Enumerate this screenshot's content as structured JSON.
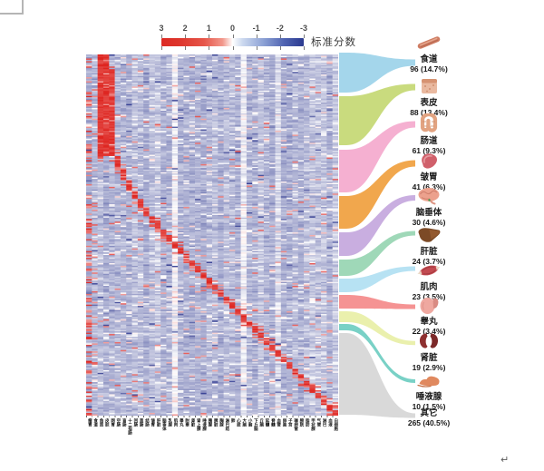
{
  "figure": {
    "colorbar": {
      "label": "标准分数",
      "ticks": [
        "3",
        "2",
        "1",
        "0",
        "-1",
        "-2",
        "-3"
      ]
    },
    "document": {
      "paragraph_mark": "↵"
    }
  },
  "organs": [
    {
      "name": "食道",
      "count_label": "96 (14.7%)",
      "icon": "esophagus-icon",
      "flow_color": "#9fd4ea"
    },
    {
      "name": "表皮",
      "count_label": "88 (13.4%)",
      "icon": "epidermis-icon",
      "flow_color": "#c6d977"
    },
    {
      "name": "肠道",
      "count_label": "61 (9.3%)",
      "icon": "intestine-icon",
      "flow_color": "#f4accf"
    },
    {
      "name": "皱胃",
      "count_label": "41 (6.3%)",
      "icon": "stomach-icon",
      "flow_color": "#f0a243"
    },
    {
      "name": "脑垂体",
      "count_label": "30 (4.6%)",
      "icon": "pituitary-icon",
      "flow_color": "#c6aade"
    },
    {
      "name": "肝脏",
      "count_label": "24 (3.7%)",
      "icon": "liver-icon",
      "flow_color": "#9ad6b4"
    },
    {
      "name": "肌肉",
      "count_label": "23 (3.5%)",
      "icon": "muscle-icon",
      "flow_color": "#b3e0f2"
    },
    {
      "name": "睾丸",
      "count_label": "22 (3.4%)",
      "icon": "testis-icon",
      "flow_color": "#f48d8d"
    },
    {
      "name": "肾脏",
      "count_label": "19 (2.9%)",
      "icon": "kidney-icon",
      "flow_color": "#e9efa9"
    },
    {
      "name": "唾液腺",
      "count_label": "10 (1.5%)",
      "icon": "salivary-gland-icon",
      "flow_color": "#72cfc3"
    },
    {
      "name": "其它",
      "count_label": "265 (40.5%)",
      "icon": "",
      "flow_color": "#d7d7d7"
    }
  ],
  "heatmap_columns": [
    "瘤胃",
    "食道",
    "角质",
    "皮肤",
    "网胃",
    "空肠",
    "盲肠",
    "十二指肠",
    "回肠",
    "直肠",
    "结肠",
    "皱胃",
    "肝脏",
    "脑垂体",
    "乳腺",
    "肌肉",
    "睾丸",
    "附睾",
    "肾脏",
    "肾上腺",
    "唾液腺",
    "胰腺",
    "脾脏",
    "胸腺",
    "淋巴结",
    "肺",
    "心脏",
    "大脑",
    "小脑",
    "下丘脑",
    "丘脑",
    "延髓",
    "脊髓",
    "血管",
    "卵巢",
    "子宫",
    "输卵管",
    "膀胱",
    "脂肪",
    "甲状腺",
    "气管",
    "淋巴",
    "血液",
    "白细胞"
  ],
  "chart_data": {
    "type": "heatmap",
    "title": "",
    "colorbar": {
      "label": "标准分数",
      "ticks": [
        3,
        2,
        1,
        0,
        -1,
        -2,
        -3
      ],
      "min": -3,
      "max": 3,
      "colors": {
        "high": "#dd2a24",
        "mid": "#ffffff",
        "low": "#2b3a90"
      }
    },
    "n_columns": 44,
    "columns": [
      "瘤胃",
      "食道",
      "角质",
      "皮肤",
      "网胃",
      "空肠",
      "盲肠",
      "十二指肠",
      "回肠",
      "直肠",
      "结肠",
      "皱胃",
      "肝脏",
      "脑垂体",
      "乳腺",
      "肌肉",
      "睾丸",
      "附睾",
      "肾脏",
      "肾上腺",
      "唾液腺",
      "胰腺",
      "脾脏",
      "胸腺",
      "淋巴结",
      "肺",
      "心脏",
      "大脑",
      "小脑",
      "下丘脑",
      "丘脑",
      "延髓",
      "脊髓",
      "血管",
      "卵巢",
      "子宫",
      "输卵管",
      "膀胱",
      "脂肪",
      "甲状腺",
      "气管",
      "淋巴",
      "血液",
      "白细胞"
    ],
    "pattern": "z-scored marker heatmap: large red block over columns 3-5 for top ~28% of rows, then single-column red blocks descending diagonally to bottom-right; background light periwinkle noise",
    "row_groups": {
      "names": [
        "食道",
        "表皮",
        "肠道",
        "皱胃",
        "脑垂体",
        "肝脏",
        "肌肉",
        "睾丸",
        "肾脏",
        "唾液腺",
        "其它"
      ],
      "counts": [
        96,
        88,
        61,
        41,
        30,
        24,
        23,
        22,
        19,
        10,
        265
      ],
      "percents": [
        "14.7%",
        "13.4%",
        "9.3%",
        "6.3%",
        "4.6%",
        "3.7%",
        "3.5%",
        "3.4%",
        "2.9%",
        "1.5%",
        "40.5%"
      ],
      "flow_colors": [
        "#9fd4ea",
        "#c6d977",
        "#f4accf",
        "#f0a243",
        "#c6aade",
        "#9ad6b4",
        "#b3e0f2",
        "#f48d8d",
        "#e9efa9",
        "#72cfc3",
        "#d7d7d7"
      ],
      "legend_position": "right"
    }
  }
}
